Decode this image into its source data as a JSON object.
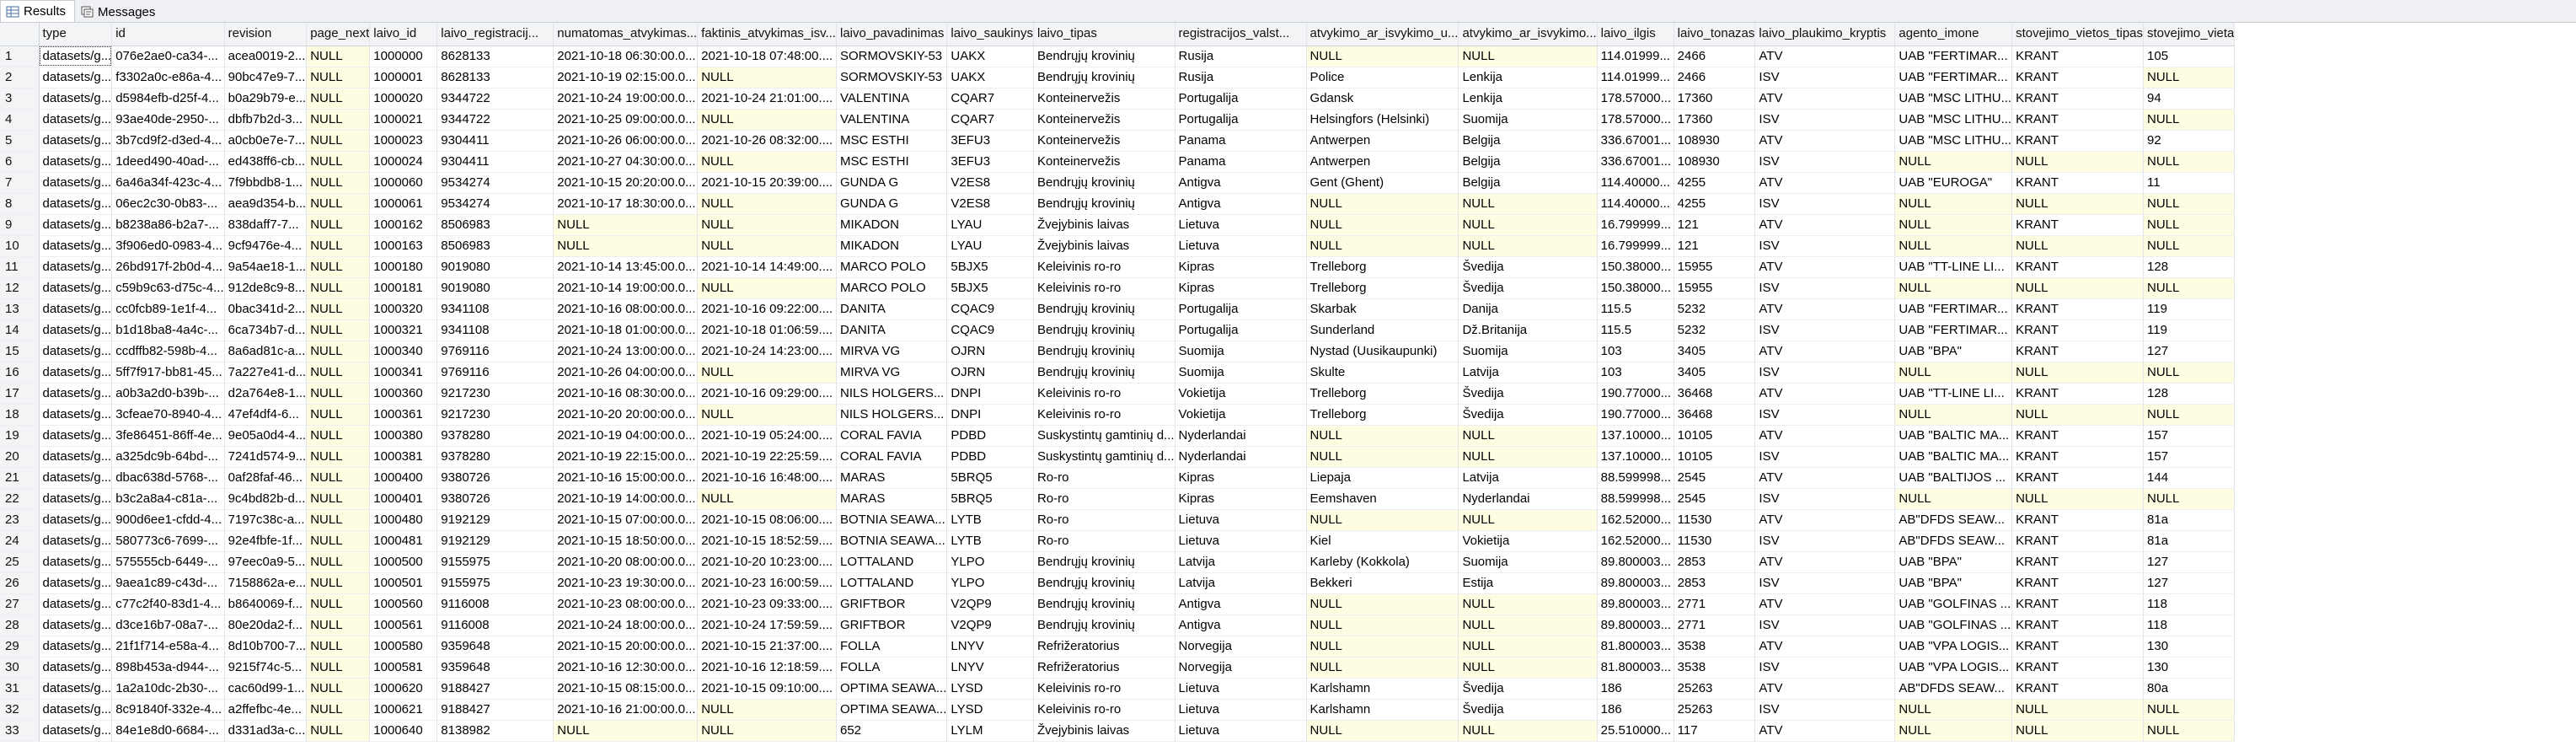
{
  "tabs": [
    {
      "label": "Results",
      "icon": "results-grid-icon",
      "active": true
    },
    {
      "label": "Messages",
      "icon": "messages-icon",
      "active": false
    }
  ],
  "columns": [
    "type",
    "id",
    "revision",
    "page_next",
    "laivo_id",
    "laivo_registracij...",
    "numatomas_atvykimas...",
    "faktinis_atvykimas_isv...",
    "laivo_pavadinimas",
    "laivo_saukinys",
    "laivo_tipas",
    "registracijos_valst...",
    "atvykimo_ar_isvykimo_u...",
    "atvykimo_ar_isvykimo...",
    "laivo_ilgis",
    "laivo_tonazas",
    "laivo_plaukimo_kryptis",
    "agento_imone",
    "stovejimo_vietos_tipas",
    "stovejimo_vieta"
  ],
  "rows": [
    [
      "datasets/g...",
      "076e2ae0-ca34-...",
      "acea0019-2...",
      "NULL",
      "1000000",
      "8628133",
      "2021-10-18 06:30:00.0...",
      "2021-10-18 07:48:00....",
      "SORMOVSKIY-53",
      "UAKX",
      "Bendrųjų krovinių",
      "Rusija",
      "NULL",
      "NULL",
      "114.01999...",
      "2466",
      "ATV",
      "UAB \"FERTIMAR...",
      "KRANT",
      "105"
    ],
    [
      "datasets/g...",
      "f3302a0c-e86a-4...",
      "90bc47e9-7...",
      "NULL",
      "1000001",
      "8628133",
      "2021-10-19 02:15:00.0...",
      "NULL",
      "SORMOVSKIY-53",
      "UAKX",
      "Bendrųjų krovinių",
      "Rusija",
      "Police",
      "Lenkija",
      "114.01999...",
      "2466",
      "ISV",
      "UAB \"FERTIMAR...",
      "KRANT",
      "NULL"
    ],
    [
      "datasets/g...",
      "d5984efb-d25f-4...",
      "b0a29b79-e...",
      "NULL",
      "1000020",
      "9344722",
      "2021-10-24 19:00:00.0...",
      "2021-10-24 21:01:00....",
      "VALENTINA",
      "CQAR7",
      "Konteinervežis",
      "Portugalija",
      "Gdansk",
      "Lenkija",
      "178.57000...",
      "17360",
      "ATV",
      "UAB \"MSC LITHU...",
      "KRANT",
      "94"
    ],
    [
      "datasets/g...",
      "93ae40de-2950-...",
      "dbfb7b2d-3...",
      "NULL",
      "1000021",
      "9344722",
      "2021-10-25 09:00:00.0...",
      "NULL",
      "VALENTINA",
      "CQAR7",
      "Konteinervežis",
      "Portugalija",
      "Helsingfors (Helsinki)",
      "Suomija",
      "178.57000...",
      "17360",
      "ISV",
      "UAB \"MSC LITHU...",
      "KRANT",
      "NULL"
    ],
    [
      "datasets/g...",
      "3b7cd9f2-d3ed-4...",
      "a0cb0e7e-7...",
      "NULL",
      "1000023",
      "9304411",
      "2021-10-26 06:00:00.0...",
      "2021-10-26 08:32:00....",
      "MSC ESTHI",
      "3EFU3",
      "Konteinervežis",
      "Panama",
      "Antwerpen",
      "Belgija",
      "336.67001...",
      "108930",
      "ATV",
      "UAB \"MSC LITHU...",
      "KRANT",
      "92"
    ],
    [
      "datasets/g...",
      "1deed490-40ad-...",
      "ed438ff6-cb...",
      "NULL",
      "1000024",
      "9304411",
      "2021-10-27 04:30:00.0...",
      "NULL",
      "MSC ESTHI",
      "3EFU3",
      "Konteinervežis",
      "Panama",
      "Antwerpen",
      "Belgija",
      "336.67001...",
      "108930",
      "ISV",
      "NULL",
      "NULL",
      "NULL"
    ],
    [
      "datasets/g...",
      "6a46a34f-423c-4...",
      "7f9bbdb8-1...",
      "NULL",
      "1000060",
      "9534274",
      "2021-10-15 20:20:00.0...",
      "2021-10-15 20:39:00....",
      "GUNDA G",
      "V2ES8",
      "Bendrųjų krovinių",
      "Antigva",
      "Gent (Ghent)",
      "Belgija",
      "114.40000...",
      "4255",
      "ATV",
      "UAB \"EUROGA\"",
      "KRANT",
      "11"
    ],
    [
      "datasets/g...",
      "06ec2c30-0b83-...",
      "aea9d354-b...",
      "NULL",
      "1000061",
      "9534274",
      "2021-10-17 18:30:00.0...",
      "NULL",
      "GUNDA G",
      "V2ES8",
      "Bendrųjų krovinių",
      "Antigva",
      "NULL",
      "NULL",
      "114.40000...",
      "4255",
      "ISV",
      "NULL",
      "NULL",
      "NULL"
    ],
    [
      "datasets/g...",
      "b8238a86-b2a7-...",
      "838daff7-7...",
      "NULL",
      "1000162",
      "8506983",
      "NULL",
      "NULL",
      "MIKADON",
      "LYAU",
      "Žvejybinis laivas",
      "Lietuva",
      "NULL",
      "NULL",
      "16.799999...",
      "121",
      "ATV",
      "NULL",
      "KRANT",
      "NULL"
    ],
    [
      "datasets/g...",
      "3f906ed0-0983-4...",
      "9cf9476e-4...",
      "NULL",
      "1000163",
      "8506983",
      "NULL",
      "NULL",
      "MIKADON",
      "LYAU",
      "Žvejybinis laivas",
      "Lietuva",
      "NULL",
      "NULL",
      "16.799999...",
      "121",
      "ISV",
      "NULL",
      "NULL",
      "NULL"
    ],
    [
      "datasets/g...",
      "26bd917f-2b0d-4...",
      "9a54ae18-1...",
      "NULL",
      "1000180",
      "9019080",
      "2021-10-14 13:45:00.0...",
      "2021-10-14 14:49:00....",
      "MARCO POLO",
      "5BJX5",
      "Keleivinis ro-ro",
      "Kipras",
      "Trelleborg",
      "Švedija",
      "150.38000...",
      "15955",
      "ATV",
      "UAB \"TT-LINE LI...",
      "KRANT",
      "128"
    ],
    [
      "datasets/g...",
      "c59b9c63-d75c-4...",
      "912de8c9-8...",
      "NULL",
      "1000181",
      "9019080",
      "2021-10-14 19:00:00.0...",
      "NULL",
      "MARCO POLO",
      "5BJX5",
      "Keleivinis ro-ro",
      "Kipras",
      "Trelleborg",
      "Švedija",
      "150.38000...",
      "15955",
      "ISV",
      "NULL",
      "NULL",
      "NULL"
    ],
    [
      "datasets/g...",
      "cc0fcb89-1e1f-4...",
      "0bac341d-2...",
      "NULL",
      "1000320",
      "9341108",
      "2021-10-16 08:00:00.0...",
      "2021-10-16 09:22:00....",
      "DANITA",
      "CQAC9",
      "Bendrųjų krovinių",
      "Portugalija",
      "Skarbak",
      "Danija",
      "115.5",
      "5232",
      "ATV",
      "UAB \"FERTIMAR...",
      "KRANT",
      "119"
    ],
    [
      "datasets/g...",
      "b1d18ba8-4a4c-...",
      "6ca734b7-d...",
      "NULL",
      "1000321",
      "9341108",
      "2021-10-18 01:00:00.0...",
      "2021-10-18 01:06:59....",
      "DANITA",
      "CQAC9",
      "Bendrųjų krovinių",
      "Portugalija",
      "Sunderland",
      "Dž.Britanija",
      "115.5",
      "5232",
      "ISV",
      "UAB \"FERTIMAR...",
      "KRANT",
      "119"
    ],
    [
      "datasets/g...",
      "ccdffb82-598b-4...",
      "8a6ad81c-a...",
      "NULL",
      "1000340",
      "9769116",
      "2021-10-24 13:00:00.0...",
      "2021-10-24 14:23:00....",
      "MIRVA VG",
      "OJRN",
      "Bendrųjų krovinių",
      "Suomija",
      "Nystad (Uusikaupunki)",
      "Suomija",
      "103",
      "3405",
      "ATV",
      "UAB \"BPA\"",
      "KRANT",
      "127"
    ],
    [
      "datasets/g...",
      "5ff7f917-bb81-45...",
      "7a227e41-d...",
      "NULL",
      "1000341",
      "9769116",
      "2021-10-26 04:00:00.0...",
      "NULL",
      "MIRVA VG",
      "OJRN",
      "Bendrųjų krovinių",
      "Suomija",
      "Skulte",
      "Latvija",
      "103",
      "3405",
      "ISV",
      "NULL",
      "NULL",
      "NULL"
    ],
    [
      "datasets/g...",
      "a0b3a2d0-b39b-...",
      "d2a764e8-1...",
      "NULL",
      "1000360",
      "9217230",
      "2021-10-16 08:30:00.0...",
      "2021-10-16 09:29:00....",
      "NILS HOLGERS...",
      "DNPI",
      "Keleivinis ro-ro",
      "Vokietija",
      "Trelleborg",
      "Švedija",
      "190.77000...",
      "36468",
      "ATV",
      "UAB \"TT-LINE LI...",
      "KRANT",
      "128"
    ],
    [
      "datasets/g...",
      "3cfeae70-8940-4...",
      "47ef4df4-6...",
      "NULL",
      "1000361",
      "9217230",
      "2021-10-20 20:00:00.0...",
      "NULL",
      "NILS HOLGERS...",
      "DNPI",
      "Keleivinis ro-ro",
      "Vokietija",
      "Trelleborg",
      "Švedija",
      "190.77000...",
      "36468",
      "ISV",
      "NULL",
      "NULL",
      "NULL"
    ],
    [
      "datasets/g...",
      "3fe86451-86ff-4e...",
      "9e05a0d4-4...",
      "NULL",
      "1000380",
      "9378280",
      "2021-10-19 04:00:00.0...",
      "2021-10-19 05:24:00....",
      "CORAL FAVIA",
      "PDBD",
      "Suskystintų gamtinių d...",
      "Nyderlandai",
      "NULL",
      "NULL",
      "137.10000...",
      "10105",
      "ATV",
      "UAB \"BALTIC MA...",
      "KRANT",
      "157"
    ],
    [
      "datasets/g...",
      "a325dc9b-64bd-...",
      "7241d574-9...",
      "NULL",
      "1000381",
      "9378280",
      "2021-10-19 22:15:00.0...",
      "2021-10-19 22:25:59....",
      "CORAL FAVIA",
      "PDBD",
      "Suskystintų gamtinių d...",
      "Nyderlandai",
      "NULL",
      "NULL",
      "137.10000...",
      "10105",
      "ISV",
      "UAB \"BALTIC MA...",
      "KRANT",
      "157"
    ],
    [
      "datasets/g...",
      "dbac638d-5768-...",
      "0af28faf-46...",
      "NULL",
      "1000400",
      "9380726",
      "2021-10-16 15:00:00.0...",
      "2021-10-16 16:48:00....",
      "MARAS",
      "5BRQ5",
      "Ro-ro",
      "Kipras",
      "Liepaja",
      "Latvija",
      "88.599998...",
      "2545",
      "ATV",
      "UAB \"BALTIJOS ...",
      "KRANT",
      "144"
    ],
    [
      "datasets/g...",
      "b3c2a8a4-c81a-...",
      "9c4bd82b-d...",
      "NULL",
      "1000401",
      "9380726",
      "2021-10-19 14:00:00.0...",
      "NULL",
      "MARAS",
      "5BRQ5",
      "Ro-ro",
      "Kipras",
      "Eemshaven",
      "Nyderlandai",
      "88.599998...",
      "2545",
      "ISV",
      "NULL",
      "NULL",
      "NULL"
    ],
    [
      "datasets/g...",
      "900d6ee1-cfdd-4...",
      "7197c38c-a...",
      "NULL",
      "1000480",
      "9192129",
      "2021-10-15 07:00:00.0...",
      "2021-10-15 08:06:00....",
      "BOTNIA SEAWA...",
      "LYTB",
      "Ro-ro",
      "Lietuva",
      "NULL",
      "NULL",
      "162.52000...",
      "11530",
      "ATV",
      "AB\"DFDS SEAW...",
      "KRANT",
      "81a"
    ],
    [
      "datasets/g...",
      "580773c6-7699-...",
      "92e4fbfe-1f...",
      "NULL",
      "1000481",
      "9192129",
      "2021-10-15 18:50:00.0...",
      "2021-10-15 18:52:59....",
      "BOTNIA SEAWA...",
      "LYTB",
      "Ro-ro",
      "Lietuva",
      "Kiel",
      "Vokietija",
      "162.52000...",
      "11530",
      "ISV",
      "AB\"DFDS SEAW...",
      "KRANT",
      "81a"
    ],
    [
      "datasets/g...",
      "575555cb-6449-...",
      "97eec0a9-5...",
      "NULL",
      "1000500",
      "9155975",
      "2021-10-20 08:00:00.0...",
      "2021-10-20 10:23:00....",
      "LOTTALAND",
      "YLPO",
      "Bendrųjų krovinių",
      "Latvija",
      "Karleby (Kokkola)",
      "Suomija",
      "89.800003...",
      "2853",
      "ATV",
      "UAB \"BPA\"",
      "KRANT",
      "127"
    ],
    [
      "datasets/g...",
      "9aea1c89-c43d-...",
      "7158862a-e...",
      "NULL",
      "1000501",
      "9155975",
      "2021-10-23 19:30:00.0...",
      "2021-10-23 16:00:59....",
      "LOTTALAND",
      "YLPO",
      "Bendrųjų krovinių",
      "Latvija",
      "Bekkeri",
      "Estija",
      "89.800003...",
      "2853",
      "ISV",
      "UAB \"BPA\"",
      "KRANT",
      "127"
    ],
    [
      "datasets/g...",
      "c77c2f40-83d1-4...",
      "b8640069-f...",
      "NULL",
      "1000560",
      "9116008",
      "2021-10-23 08:00:00.0...",
      "2021-10-23 09:33:00....",
      "GRIFTBOR",
      "V2QP9",
      "Bendrųjų krovinių",
      "Antigva",
      "NULL",
      "NULL",
      "89.800003...",
      "2771",
      "ATV",
      "UAB \"GOLFINAS ...",
      "KRANT",
      "118"
    ],
    [
      "datasets/g...",
      "d3ce16b7-08a7-...",
      "80e20da2-f...",
      "NULL",
      "1000561",
      "9116008",
      "2021-10-24 18:00:00.0...",
      "2021-10-24 17:59:59....",
      "GRIFTBOR",
      "V2QP9",
      "Bendrųjų krovinių",
      "Antigva",
      "NULL",
      "NULL",
      "89.800003...",
      "2771",
      "ISV",
      "UAB \"GOLFINAS ...",
      "KRANT",
      "118"
    ],
    [
      "datasets/g...",
      "21f1f714-e58a-4...",
      "8d10b700-7...",
      "NULL",
      "1000580",
      "9359648",
      "2021-10-15 20:00:00.0...",
      "2021-10-15 21:37:00....",
      "FOLLA",
      "LNYV",
      "Refrižeratorius",
      "Norvegija",
      "NULL",
      "NULL",
      "81.800003...",
      "3538",
      "ATV",
      "UAB \"VPA LOGIS...",
      "KRANT",
      "130"
    ],
    [
      "datasets/g...",
      "898b453a-d944-...",
      "9215f74c-5...",
      "NULL",
      "1000581",
      "9359648",
      "2021-10-16 12:30:00.0...",
      "2021-10-16 12:18:59....",
      "FOLLA",
      "LNYV",
      "Refrižeratorius",
      "Norvegija",
      "NULL",
      "NULL",
      "81.800003...",
      "3538",
      "ISV",
      "UAB \"VPA LOGIS...",
      "KRANT",
      "130"
    ],
    [
      "datasets/g...",
      "1a2a10dc-2b30-...",
      "cac60d99-1...",
      "NULL",
      "1000620",
      "9188427",
      "2021-10-15 08:15:00.0...",
      "2021-10-15 09:10:00....",
      "OPTIMA SEAWA...",
      "LYSD",
      "Keleivinis ro-ro",
      "Lietuva",
      "Karlshamn",
      "Švedija",
      "186",
      "25263",
      "ATV",
      "AB\"DFDS SEAW...",
      "KRANT",
      "80a"
    ],
    [
      "datasets/g...",
      "8c91840f-332e-4...",
      "a2ffefbc-4e...",
      "NULL",
      "1000621",
      "9188427",
      "2021-10-16 21:00:00.0...",
      "NULL",
      "OPTIMA SEAWA...",
      "LYSD",
      "Keleivinis ro-ro",
      "Lietuva",
      "Karlshamn",
      "Švedija",
      "186",
      "25263",
      "ISV",
      "NULL",
      "NULL",
      "NULL"
    ],
    [
      "datasets/g...",
      "84e1e8d0-6684-...",
      "d331ad3a-c...",
      "NULL",
      "1000640",
      "8138982",
      "NULL",
      "NULL",
      "652",
      "LYLM",
      "Žvejybinis laivas",
      "Lietuva",
      "NULL",
      "NULL",
      "25.510000...",
      "117",
      "ATV",
      "NULL",
      "NULL",
      "NULL"
    ]
  ]
}
